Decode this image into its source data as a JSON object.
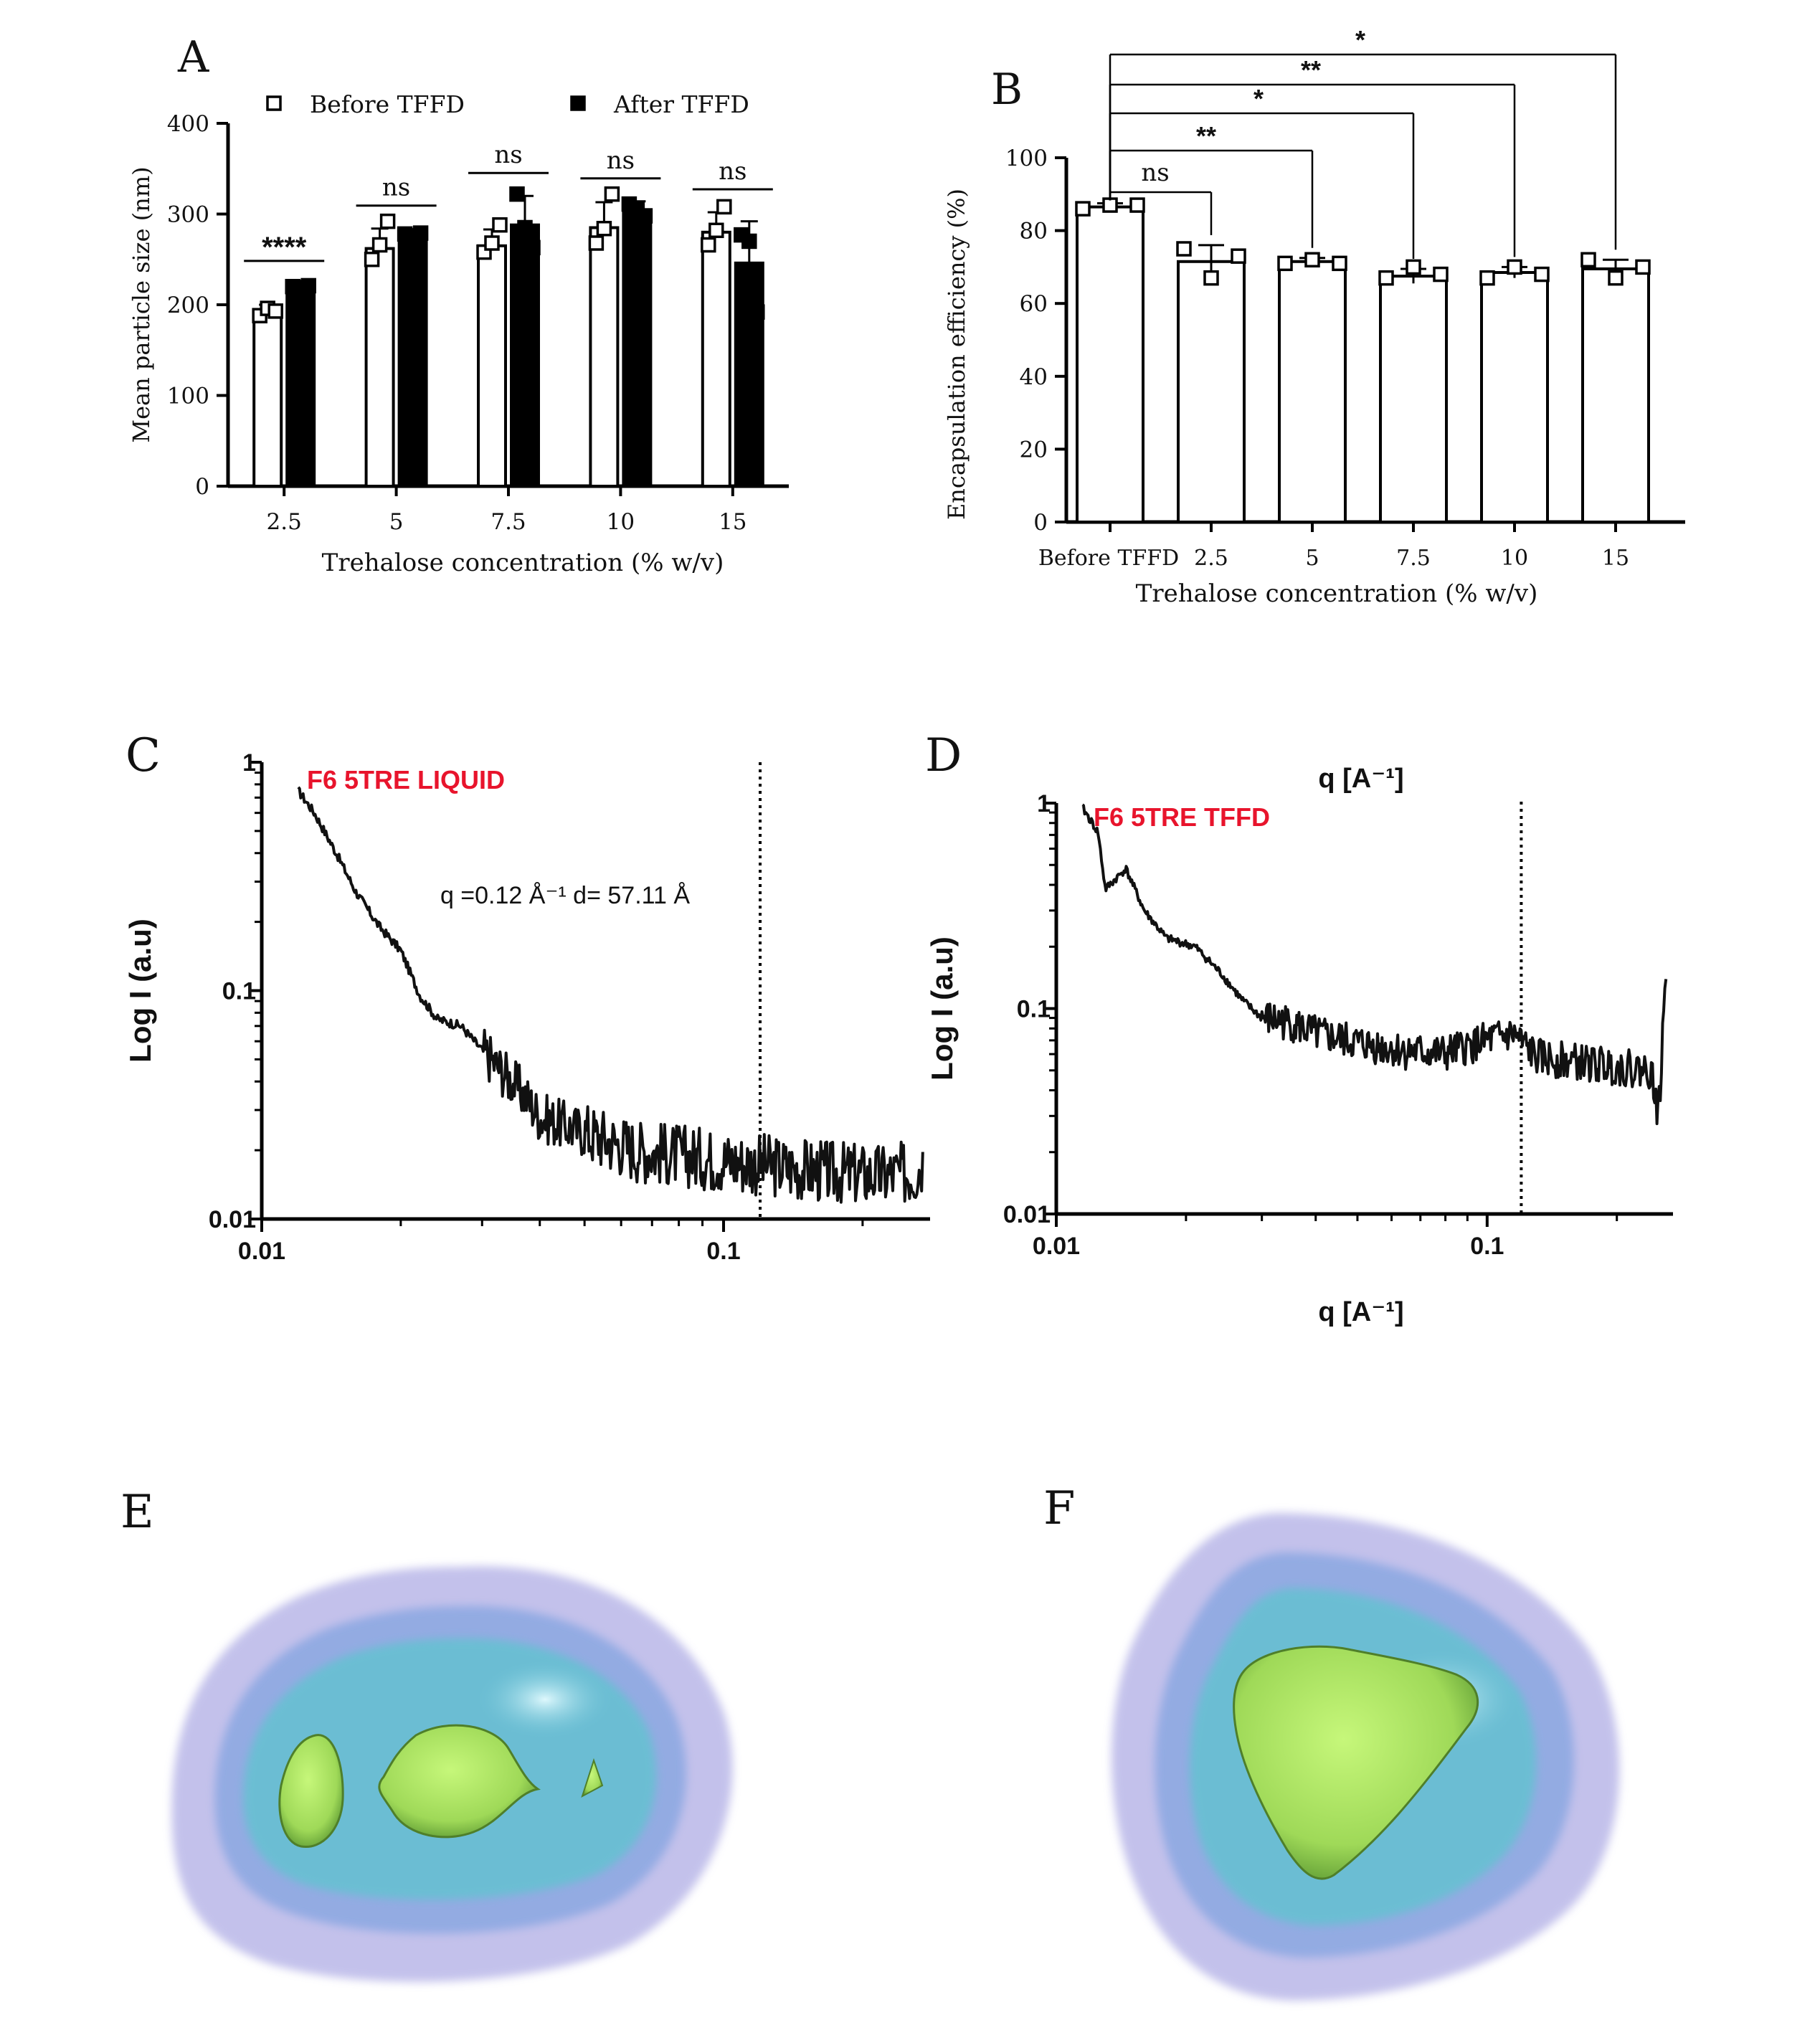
{
  "chart_data": [
    {
      "panel": "A",
      "type": "bar",
      "categories": [
        "2.5",
        "5",
        "7.5",
        "10",
        "15"
      ],
      "xlabel": "Trehalose concentration (% w/v)",
      "ylabel": "Mean particle size (nm)",
      "ylim": [
        0,
        400
      ],
      "yticks": [
        "0",
        "100",
        "200",
        "300",
        "400"
      ],
      "legend_placement": "top",
      "series": [
        {
          "name": "Before TFFD",
          "style": "open",
          "values": [
            192,
            262,
            265,
            285,
            280
          ],
          "errors": [
            8,
            22,
            18,
            28,
            22
          ],
          "points": [
            [
              188,
              196,
              193
            ],
            [
              250,
              266,
              292
            ],
            [
              258,
              268,
              288
            ],
            [
              268,
              284,
              322
            ],
            [
              266,
              282,
              308
            ]
          ]
        },
        {
          "name": "After TFFD",
          "style": "filled",
          "values": [
            220,
            277,
            288,
            302,
            246
          ],
          "errors": [
            3,
            5,
            32,
            12,
            46
          ],
          "points": [
            [
              220,
              219,
              221
            ],
            [
              278,
              276,
              279
            ],
            [
              322,
              285,
              263
            ],
            [
              311,
              306,
              298
            ],
            [
              277,
              270,
              192
            ]
          ]
        }
      ],
      "significance": [
        "****",
        "ns",
        "ns",
        "ns",
        "ns"
      ],
      "colors": {
        "before": "#ffffff",
        "after": "#000000"
      }
    },
    {
      "panel": "B",
      "type": "bar",
      "categories": [
        "Before TFFD",
        "2.5",
        "5",
        "7.5",
        "10",
        "15"
      ],
      "xlabel": "Trehalose concentration (% w/v)",
      "ylabel": "Encapsulation efficiency (%)",
      "ylim": [
        0,
        100
      ],
      "yticks": [
        "0",
        "20",
        "40",
        "60",
        "80",
        "100"
      ],
      "values": [
        86.5,
        71.5,
        71.5,
        67.5,
        68.5,
        69.5
      ],
      "errors": [
        1,
        4.5,
        1,
        2,
        1.5,
        2.5
      ],
      "points": [
        [
          86,
          87,
          87
        ],
        [
          75,
          67,
          73
        ],
        [
          71,
          72,
          71
        ],
        [
          67,
          70,
          68
        ],
        [
          67,
          70,
          68
        ],
        [
          72,
          67,
          70
        ]
      ],
      "comparisons": [
        {
          "to": "2.5",
          "label": "ns"
        },
        {
          "to": "5",
          "label": "**"
        },
        {
          "to": "7.5",
          "label": "*"
        },
        {
          "to": "10",
          "label": "**"
        },
        {
          "to": "15",
          "label": "*"
        }
      ]
    },
    {
      "panel": "C",
      "type": "line",
      "xscale": "log",
      "yscale": "log",
      "xlim": [
        0.01,
        0.28
      ],
      "ylim": [
        0.01,
        1
      ],
      "xticks": [
        "0.01",
        "0.1"
      ],
      "yticks": [
        "0.01",
        "0.1",
        "1"
      ],
      "ylabel": "Log I (a.u)",
      "series_label": "F6 5TRE LIQUID",
      "annotation": "q =0.12 Å⁻¹ d= 57.11 Å",
      "vline_q": 0.12,
      "profile": [
        [
          0.012,
          0.75
        ],
        [
          0.013,
          0.6
        ],
        [
          0.0145,
          0.4
        ],
        [
          0.016,
          0.27
        ],
        [
          0.018,
          0.19
        ],
        [
          0.02,
          0.15
        ],
        [
          0.022,
          0.095
        ],
        [
          0.024,
          0.075
        ],
        [
          0.027,
          0.07
        ],
        [
          0.03,
          0.055
        ],
        [
          0.033,
          0.045
        ],
        [
          0.037,
          0.035
        ],
        [
          0.04,
          0.028
        ],
        [
          0.05,
          0.024
        ],
        [
          0.065,
          0.02
        ],
        [
          0.08,
          0.019
        ],
        [
          0.1,
          0.018
        ],
        [
          0.13,
          0.017
        ],
        [
          0.17,
          0.016
        ],
        [
          0.22,
          0.0155
        ],
        [
          0.26,
          0.016
        ],
        [
          0.27,
          0.018
        ]
      ],
      "line_color": "#111111",
      "label_color": "#e8142c"
    },
    {
      "panel": "D",
      "type": "line",
      "xscale": "log",
      "yscale": "log",
      "xlim": [
        0.01,
        0.27
      ],
      "ylim": [
        0.01,
        1
      ],
      "xticks": [
        "0.01",
        "0.1"
      ],
      "yticks": [
        "0.01",
        "0.1",
        "1"
      ],
      "xlabel": "q [A⁻¹]",
      "ylabel": "Log I (a.u)",
      "top_label": "q [A⁻¹]",
      "series_label": "F6 5TRE TFFD",
      "vline_q": 0.12,
      "profile": [
        [
          0.0115,
          0.95
        ],
        [
          0.0125,
          0.72
        ],
        [
          0.013,
          0.38
        ],
        [
          0.0145,
          0.48
        ],
        [
          0.016,
          0.3
        ],
        [
          0.018,
          0.22
        ],
        [
          0.021,
          0.2
        ],
        [
          0.024,
          0.15
        ],
        [
          0.027,
          0.11
        ],
        [
          0.03,
          0.09
        ],
        [
          0.035,
          0.085
        ],
        [
          0.04,
          0.075
        ],
        [
          0.05,
          0.068
        ],
        [
          0.065,
          0.062
        ],
        [
          0.08,
          0.06
        ],
        [
          0.1,
          0.07
        ],
        [
          0.115,
          0.075
        ],
        [
          0.13,
          0.058
        ],
        [
          0.16,
          0.055
        ],
        [
          0.2,
          0.052
        ],
        [
          0.24,
          0.05
        ],
        [
          0.25,
          0.03
        ],
        [
          0.255,
          0.065
        ],
        [
          0.26,
          0.16
        ]
      ],
      "line_color": "#111111",
      "label_color": "#e8142c"
    }
  ],
  "panels": {
    "a": "A",
    "b": "B",
    "c": "C",
    "d": "D",
    "e": "E",
    "f": "F"
  },
  "density_maps": {
    "colors": {
      "outer": "#b7b6e6",
      "middle": "#8fb0e3",
      "inner": "#6cc3d6",
      "core": "#a7e35f",
      "highlight": "#c9f1f7"
    }
  }
}
